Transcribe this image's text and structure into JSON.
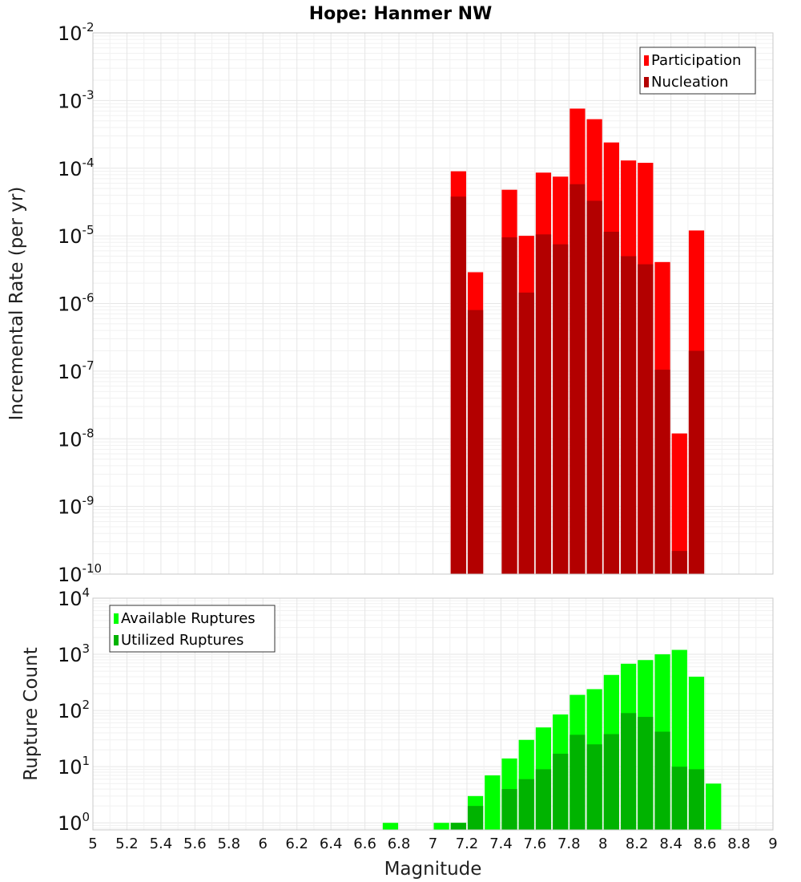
{
  "chart_data": [
    {
      "type": "bar",
      "title": "Hope: Hanmer NW",
      "xlabel": "",
      "ylabel": "Incremental Rate (per yr)",
      "yscale": "log",
      "ylim": [
        1e-10,
        0.01
      ],
      "xlim": [
        5,
        9
      ],
      "bar_width": 0.1,
      "legend_position": "top-right",
      "series": [
        {
          "name": "Participation",
          "color": "#ff0000",
          "points": [
            {
              "x": 7.15,
              "y": 9e-05
            },
            {
              "x": 7.25,
              "y": 2.9e-06
            },
            {
              "x": 7.45,
              "y": 4.8e-05
            },
            {
              "x": 7.55,
              "y": 1e-05
            },
            {
              "x": 7.65,
              "y": 8.6e-05
            },
            {
              "x": 7.75,
              "y": 7.5e-05
            },
            {
              "x": 7.85,
              "y": 0.00076
            },
            {
              "x": 7.95,
              "y": 0.00053
            },
            {
              "x": 8.05,
              "y": 0.00024
            },
            {
              "x": 8.15,
              "y": 0.00013
            },
            {
              "x": 8.25,
              "y": 0.00012
            },
            {
              "x": 8.35,
              "y": 4.1e-06
            },
            {
              "x": 8.45,
              "y": 1.2e-08
            },
            {
              "x": 8.55,
              "y": 1.2e-05
            }
          ]
        },
        {
          "name": "Nucleation",
          "color": "#b30000",
          "points": [
            {
              "x": 7.15,
              "y": 3.8e-05
            },
            {
              "x": 7.25,
              "y": 8e-07
            },
            {
              "x": 7.45,
              "y": 9.5e-06
            },
            {
              "x": 7.55,
              "y": 1.45e-06
            },
            {
              "x": 7.65,
              "y": 1.05e-05
            },
            {
              "x": 7.75,
              "y": 7.5e-06
            },
            {
              "x": 7.85,
              "y": 5.8e-05
            },
            {
              "x": 7.95,
              "y": 3.3e-05
            },
            {
              "x": 8.05,
              "y": 1.15e-05
            },
            {
              "x": 8.15,
              "y": 5e-06
            },
            {
              "x": 8.25,
              "y": 3.8e-06
            },
            {
              "x": 8.35,
              "y": 1.05e-07
            },
            {
              "x": 8.45,
              "y": 2.2e-10
            },
            {
              "x": 8.55,
              "y": 2e-07
            }
          ]
        }
      ]
    },
    {
      "type": "bar",
      "title": "",
      "xlabel": "Magnitude",
      "ylabel": "Rupture Count",
      "yscale": "log",
      "ylim": [
        0.75,
        10000
      ],
      "xlim": [
        5,
        9
      ],
      "bar_width": 0.1,
      "legend_position": "top-left",
      "x_ticks": [
        "5",
        "5.2",
        "5.4",
        "5.6",
        "5.8",
        "6",
        "6.2",
        "6.4",
        "6.6",
        "6.8",
        "7",
        "7.2",
        "7.4",
        "7.6",
        "7.8",
        "8",
        "8.2",
        "8.4",
        "8.6",
        "8.8",
        "9"
      ],
      "series": [
        {
          "name": "Available Ruptures",
          "color": "#00ff00",
          "points": [
            {
              "x": 6.75,
              "y": 1
            },
            {
              "x": 7.05,
              "y": 1
            },
            {
              "x": 7.15,
              "y": 1
            },
            {
              "x": 7.25,
              "y": 3
            },
            {
              "x": 7.35,
              "y": 7
            },
            {
              "x": 7.45,
              "y": 14
            },
            {
              "x": 7.55,
              "y": 30
            },
            {
              "x": 7.65,
              "y": 50
            },
            {
              "x": 7.75,
              "y": 85
            },
            {
              "x": 7.85,
              "y": 190
            },
            {
              "x": 7.95,
              "y": 240
            },
            {
              "x": 8.05,
              "y": 430
            },
            {
              "x": 8.15,
              "y": 680
            },
            {
              "x": 8.25,
              "y": 790
            },
            {
              "x": 8.35,
              "y": 1000
            },
            {
              "x": 8.45,
              "y": 1200
            },
            {
              "x": 8.55,
              "y": 400
            },
            {
              "x": 8.65,
              "y": 5
            }
          ]
        },
        {
          "name": "Utilized Ruptures",
          "color": "#00b300",
          "points": [
            {
              "x": 7.15,
              "y": 1
            },
            {
              "x": 7.25,
              "y": 2
            },
            {
              "x": 7.45,
              "y": 4
            },
            {
              "x": 7.55,
              "y": 6
            },
            {
              "x": 7.65,
              "y": 9
            },
            {
              "x": 7.75,
              "y": 17
            },
            {
              "x": 7.85,
              "y": 37
            },
            {
              "x": 7.95,
              "y": 25
            },
            {
              "x": 8.05,
              "y": 38
            },
            {
              "x": 8.15,
              "y": 90
            },
            {
              "x": 8.25,
              "y": 77
            },
            {
              "x": 8.35,
              "y": 42
            },
            {
              "x": 8.45,
              "y": 10
            },
            {
              "x": 8.55,
              "y": 9
            }
          ]
        }
      ]
    }
  ]
}
